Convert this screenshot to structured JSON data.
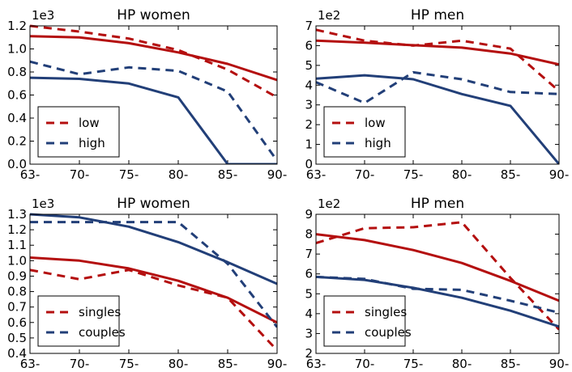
{
  "colors": {
    "red": "#b40f0f",
    "blue": "#223f78"
  },
  "chart_data": [
    {
      "type": "line",
      "title": "HP women",
      "scale_label": "1e3",
      "categories": [
        "63-",
        "70-",
        "75-",
        "80-",
        "85-",
        "90-"
      ],
      "ylim": [
        0.0,
        1.2
      ],
      "yticks": [
        0.0,
        0.2,
        0.4,
        0.6,
        0.8,
        1.0,
        1.2
      ],
      "ytick_labels": [
        "0.0",
        "0.2",
        "0.4",
        "0.6",
        "0.8",
        "1.0",
        "1.2"
      ],
      "legend_placement": "lower-left",
      "lines": [
        {
          "color": "red",
          "style": "solid",
          "values": [
            1.11,
            1.1,
            1.05,
            0.97,
            0.87,
            0.73
          ]
        },
        {
          "name": "low",
          "color": "red",
          "style": "dashed",
          "values": [
            1.2,
            1.15,
            1.09,
            0.99,
            0.82,
            0.58
          ]
        },
        {
          "color": "blue",
          "style": "solid",
          "values": [
            0.75,
            0.74,
            0.7,
            0.58,
            0.0,
            0.0
          ]
        },
        {
          "name": "high",
          "color": "blue",
          "style": "dashed",
          "values": [
            0.89,
            0.78,
            0.84,
            0.81,
            0.63,
            0.03
          ]
        }
      ]
    },
    {
      "type": "line",
      "title": "HP men",
      "scale_label": "1e2",
      "categories": [
        "63-",
        "70-",
        "75-",
        "80-",
        "85-",
        "90-"
      ],
      "ylim": [
        0,
        7
      ],
      "yticks": [
        0,
        1,
        2,
        3,
        4,
        5,
        6,
        7
      ],
      "ytick_labels": [
        "0",
        "1",
        "2",
        "3",
        "4",
        "5",
        "6",
        "7"
      ],
      "legend_placement": "lower-left",
      "lines": [
        {
          "color": "red",
          "style": "solid",
          "values": [
            6.25,
            6.15,
            6.02,
            5.9,
            5.6,
            5.05
          ]
        },
        {
          "name": "low",
          "color": "red",
          "style": "dashed",
          "values": [
            6.8,
            6.25,
            6.0,
            6.25,
            5.85,
            3.7
          ]
        },
        {
          "color": "blue",
          "style": "solid",
          "values": [
            4.33,
            4.5,
            4.3,
            3.55,
            2.95,
            0.0
          ]
        },
        {
          "name": "high",
          "color": "blue",
          "style": "dashed",
          "values": [
            4.15,
            3.1,
            4.65,
            4.3,
            3.65,
            3.55
          ]
        }
      ]
    },
    {
      "type": "line",
      "title": "HP women",
      "scale_label": "1e3",
      "categories": [
        "63-",
        "70-",
        "75-",
        "80-",
        "85-",
        "90-"
      ],
      "ylim": [
        0.4,
        1.3
      ],
      "yticks": [
        0.4,
        0.5,
        0.6,
        0.7,
        0.8,
        0.9,
        1.0,
        1.1,
        1.2,
        1.3
      ],
      "ytick_labels": [
        "0.4",
        "0.5",
        "0.6",
        "0.7",
        "0.8",
        "0.9",
        "1.0",
        "1.1",
        "1.2",
        "1.3"
      ],
      "legend_placement": "lower-left",
      "lines": [
        {
          "color": "red",
          "style": "solid",
          "values": [
            1.02,
            1.0,
            0.95,
            0.87,
            0.76,
            0.6
          ]
        },
        {
          "name": "singles",
          "color": "red",
          "style": "dashed",
          "values": [
            0.94,
            0.88,
            0.94,
            0.84,
            0.76,
            0.42
          ]
        },
        {
          "color": "blue",
          "style": "solid",
          "values": [
            1.3,
            1.28,
            1.22,
            1.12,
            0.99,
            0.85
          ]
        },
        {
          "name": "couples",
          "color": "blue",
          "style": "dashed",
          "values": [
            1.25,
            1.25,
            1.25,
            1.25,
            0.98,
            0.57
          ]
        }
      ]
    },
    {
      "type": "line",
      "title": "HP men",
      "scale_label": "1e2",
      "categories": [
        "63-",
        "70-",
        "75-",
        "80-",
        "85-",
        "90-"
      ],
      "ylim": [
        2,
        9
      ],
      "yticks": [
        2,
        3,
        4,
        5,
        6,
        7,
        8,
        9
      ],
      "ytick_labels": [
        "2",
        "3",
        "4",
        "5",
        "6",
        "7",
        "8",
        "9"
      ],
      "legend_placement": "lower-left",
      "lines": [
        {
          "color": "red",
          "style": "solid",
          "values": [
            8.0,
            7.7,
            7.2,
            6.55,
            5.65,
            4.65
          ]
        },
        {
          "name": "singles",
          "color": "red",
          "style": "dashed",
          "values": [
            7.55,
            8.3,
            8.35,
            8.6,
            5.8,
            3.2
          ]
        },
        {
          "color": "blue",
          "style": "solid",
          "values": [
            5.85,
            5.7,
            5.3,
            4.8,
            4.15,
            3.35
          ]
        },
        {
          "name": "couples",
          "color": "blue",
          "style": "dashed",
          "values": [
            5.85,
            5.75,
            5.25,
            5.2,
            4.65,
            4.05
          ]
        }
      ]
    }
  ]
}
